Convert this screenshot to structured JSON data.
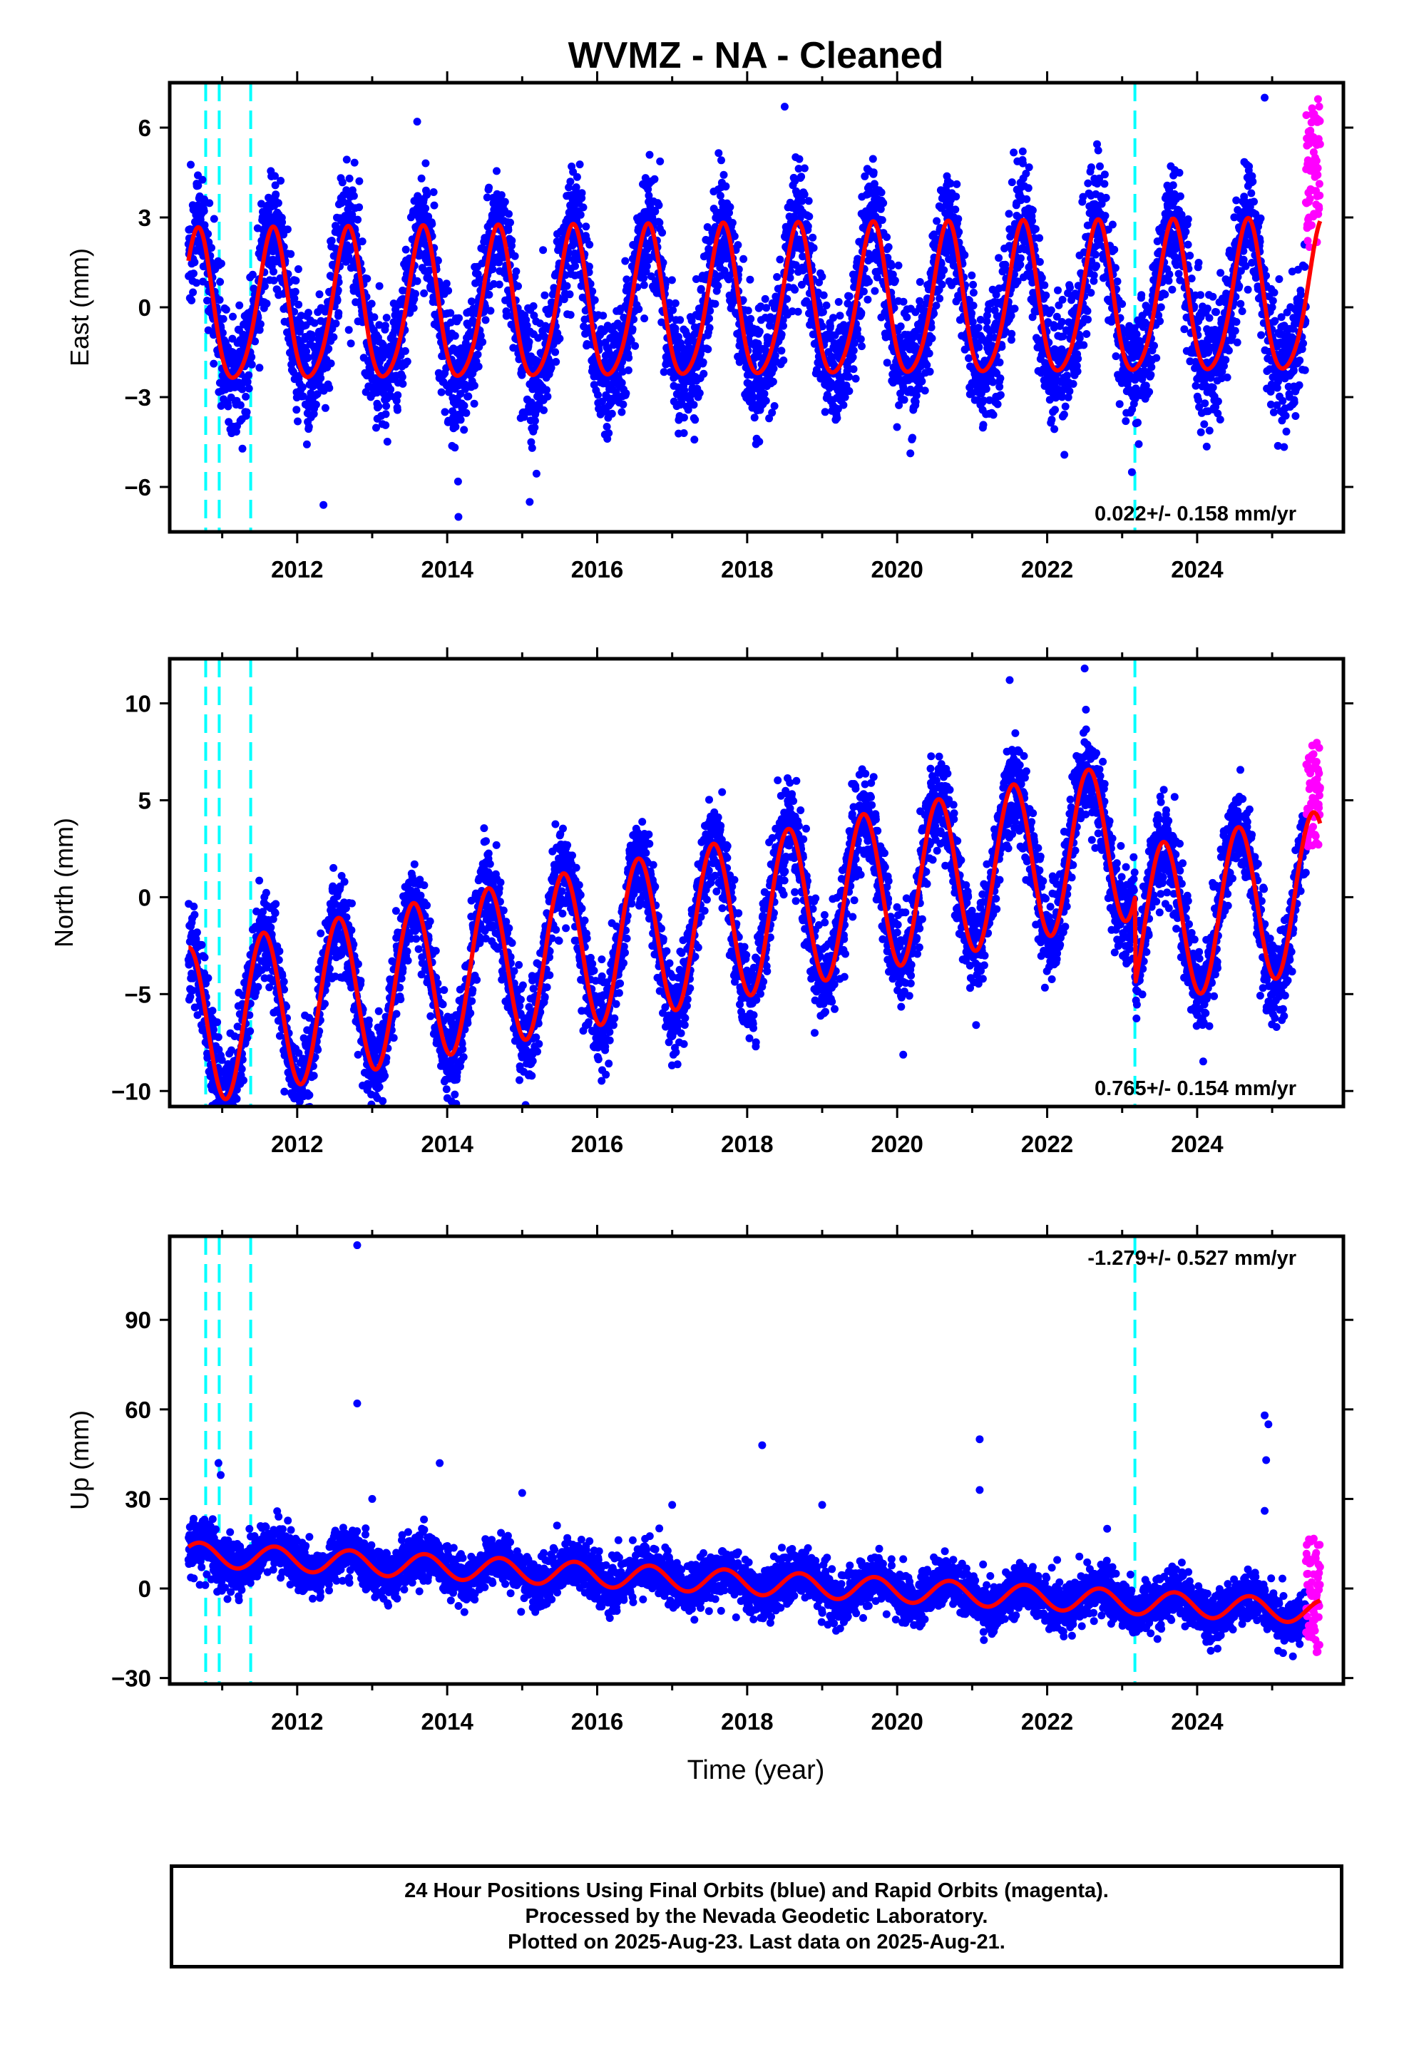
{
  "title": "WVMZ  - NA - Cleaned",
  "x_axis": {
    "label": "Time (year)",
    "range": [
      2010.3,
      2025.95
    ],
    "ticks": [
      2012,
      2014,
      2016,
      2018,
      2020,
      2022,
      2024
    ],
    "tick_labels": [
      "2012",
      "2014",
      "2016",
      "2018",
      "2020",
      "2022",
      "2024"
    ]
  },
  "colors": {
    "final_orbits": "#0000ff",
    "rapid_orbits": "#ff00ff",
    "model_fit": "#ff0000",
    "equipment_change": "#00ffff"
  },
  "chart_data": [
    {
      "type": "scatter",
      "panel": "east",
      "ylabel": "East (mm)",
      "ylim": [
        -7.5,
        7.5
      ],
      "yticks": [
        -6,
        -3,
        0,
        3,
        6
      ],
      "ytick_labels": [
        "−6",
        "−3",
        "0",
        "3",
        "6"
      ],
      "rate_label": "0.022+/- 0.158 mm/yr",
      "rate_position": "bottom-right",
      "trend": 0.022,
      "annual_amplitude": 2.5,
      "annual_peak_phase": 0.67,
      "noise": 1.0,
      "series": [
        {
          "name": "Final Orbits",
          "x_range": [
            2010.55,
            2025.45
          ]
        },
        {
          "name": "Rapid Orbits",
          "x_range": [
            2025.45,
            2025.64
          ],
          "y_range": [
            2.0,
            7.0
          ]
        }
      ],
      "model_fit_range": [
        2010.55,
        2025.64
      ],
      "outliers": [
        [
          2012.35,
          -6.6
        ],
        [
          2014.15,
          -7.0
        ],
        [
          2015.1,
          -6.5
        ],
        [
          2013.6,
          6.2
        ],
        [
          2018.5,
          6.7
        ],
        [
          2024.9,
          7.0
        ]
      ],
      "vertical_lines": [
        2010.78,
        2010.96,
        2011.38,
        2023.17
      ]
    },
    {
      "type": "scatter",
      "panel": "north",
      "ylabel": "North (mm)",
      "ylim": [
        -10.8,
        12.3
      ],
      "yticks": [
        -10,
        -5,
        0,
        5,
        10
      ],
      "ytick_labels": [
        "−10",
        "−5",
        "0",
        "5",
        "10"
      ],
      "rate_label": "0.765+/- 0.154 mm/yr",
      "rate_position": "bottom-right",
      "trend": 0.765,
      "annual_amplitude": 4.1,
      "annual_peak_phase": 0.55,
      "noise": 1.2,
      "offset_at_2023_17": -4.5,
      "series": [
        {
          "name": "Final Orbits",
          "x_range": [
            2010.55,
            2025.45
          ]
        },
        {
          "name": "Rapid Orbits",
          "x_range": [
            2025.45,
            2025.64
          ],
          "y_range": [
            2.5,
            8.0
          ]
        }
      ],
      "model_fit_range": [
        2010.55,
        2025.64
      ],
      "outliers": [
        [
          2018.9,
          -7.0
        ],
        [
          2022.5,
          11.8
        ],
        [
          2021.5,
          11.2
        ]
      ],
      "vertical_lines": [
        2010.78,
        2010.96,
        2011.38,
        2023.17
      ]
    },
    {
      "type": "scatter",
      "panel": "up",
      "ylabel": "Up (mm)",
      "ylim": [
        -32,
        118
      ],
      "yticks": [
        -30,
        0,
        30,
        60,
        90
      ],
      "ytick_labels": [
        "−30",
        "0",
        "30",
        "60",
        "90"
      ],
      "rate_label": "-1.279+/- 0.527 mm/yr",
      "rate_position": "top-right",
      "trend": -1.279,
      "annual_amplitude": 4.0,
      "annual_peak_phase": 0.7,
      "noise": 4.0,
      "series": [
        {
          "name": "Final Orbits",
          "x_range": [
            2010.55,
            2025.45
          ]
        },
        {
          "name": "Rapid Orbits",
          "x_range": [
            2025.45,
            2025.64
          ],
          "y_range": [
            -22,
            18
          ]
        }
      ],
      "model_fit_range": [
        2010.55,
        2025.64
      ],
      "outliers": [
        [
          2012.8,
          115
        ],
        [
          2012.8,
          62
        ],
        [
          2013.9,
          42
        ],
        [
          2010.95,
          42
        ],
        [
          2010.98,
          38
        ],
        [
          2018.2,
          48
        ],
        [
          2021.1,
          50
        ],
        [
          2021.1,
          33
        ],
        [
          2024.9,
          58
        ],
        [
          2024.95,
          55
        ],
        [
          2024.92,
          43
        ],
        [
          2024.9,
          26
        ],
        [
          2015.0,
          32
        ],
        [
          2013.0,
          30
        ],
        [
          2017.0,
          28
        ],
        [
          2019.0,
          28
        ],
        [
          2022.8,
          20
        ]
      ],
      "vertical_lines": [
        2010.78,
        2010.96,
        2011.38,
        2023.17
      ]
    }
  ],
  "caption": {
    "line1": "24 Hour Positions Using Final Orbits (blue) and Rapid Orbits (magenta).",
    "line2": "Processed by the Nevada Geodetic Laboratory.",
    "line3": "Plotted on 2025-Aug-23. Last data on 2025-Aug-21."
  }
}
